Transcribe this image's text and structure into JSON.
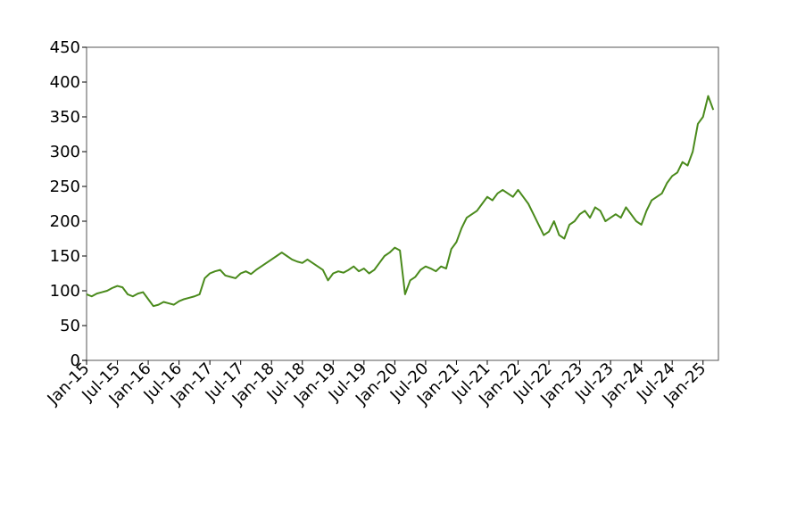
{
  "chart_data": {
    "type": "line",
    "x": [
      "2015-01",
      "2015-02",
      "2015-03",
      "2015-04",
      "2015-05",
      "2015-06",
      "2015-07",
      "2015-08",
      "2015-09",
      "2015-10",
      "2015-11",
      "2015-12",
      "2016-01",
      "2016-02",
      "2016-03",
      "2016-04",
      "2016-05",
      "2016-06",
      "2016-07",
      "2016-08",
      "2016-09",
      "2016-10",
      "2016-11",
      "2016-12",
      "2017-01",
      "2017-02",
      "2017-03",
      "2017-04",
      "2017-05",
      "2017-06",
      "2017-07",
      "2017-08",
      "2017-09",
      "2017-10",
      "2017-11",
      "2017-12",
      "2018-01",
      "2018-02",
      "2018-03",
      "2018-04",
      "2018-05",
      "2018-06",
      "2018-07",
      "2018-08",
      "2018-09",
      "2018-10",
      "2018-11",
      "2018-12",
      "2019-01",
      "2019-02",
      "2019-03",
      "2019-04",
      "2019-05",
      "2019-06",
      "2019-07",
      "2019-08",
      "2019-09",
      "2019-10",
      "2019-11",
      "2019-12",
      "2020-01",
      "2020-02",
      "2020-03",
      "2020-04",
      "2020-05",
      "2020-06",
      "2020-07",
      "2020-08",
      "2020-09",
      "2020-10",
      "2020-11",
      "2020-12",
      "2021-01",
      "2021-02",
      "2021-03",
      "2021-04",
      "2021-05",
      "2021-06",
      "2021-07",
      "2021-08",
      "2021-09",
      "2021-10",
      "2021-11",
      "2021-12",
      "2022-01",
      "2022-02",
      "2022-03",
      "2022-04",
      "2022-05",
      "2022-06",
      "2022-07",
      "2022-08",
      "2022-09",
      "2022-10",
      "2022-11",
      "2022-12",
      "2023-01",
      "2023-02",
      "2023-03",
      "2023-04",
      "2023-05",
      "2023-06",
      "2023-07",
      "2023-08",
      "2023-09",
      "2023-10",
      "2023-11",
      "2023-12",
      "2024-01",
      "2024-02",
      "2024-03",
      "2024-04",
      "2024-05",
      "2024-06",
      "2024-07",
      "2024-08",
      "2024-09",
      "2024-10",
      "2024-11",
      "2024-12",
      "2025-01",
      "2025-02",
      "2025-03"
    ],
    "series": [
      {
        "color": "#4a8a1c",
        "values": [
          95,
          92,
          96,
          98,
          100,
          104,
          107,
          105,
          95,
          92,
          96,
          98,
          88,
          78,
          80,
          84,
          82,
          80,
          85,
          88,
          90,
          92,
          95,
          118,
          125,
          128,
          130,
          122,
          120,
          118,
          125,
          128,
          124,
          130,
          135,
          140,
          145,
          150,
          155,
          150,
          145,
          142,
          140,
          145,
          140,
          135,
          130,
          115,
          125,
          128,
          126,
          130,
          135,
          128,
          132,
          125,
          130,
          140,
          150,
          155,
          162,
          158,
          95,
          115,
          120,
          130,
          135,
          132,
          128,
          135,
          132,
          160,
          170,
          190,
          205,
          210,
          215,
          225,
          235,
          230,
          240,
          245,
          240,
          235,
          245,
          235,
          225,
          210,
          195,
          180,
          185,
          200,
          180,
          175,
          195,
          200,
          210,
          215,
          205,
          220,
          215,
          200,
          205,
          210,
          205,
          220,
          210,
          200,
          195,
          215,
          230,
          235,
          240,
          255,
          265,
          270,
          285,
          280,
          300,
          340,
          350,
          380,
          360
        ]
      }
    ],
    "xlim": [
      "2015-01",
      "2025-04"
    ],
    "xticks": [
      {
        "value": "2015-01",
        "label": "Jan-15"
      },
      {
        "value": "2015-07",
        "label": "Jul-15"
      },
      {
        "value": "2016-01",
        "label": "Jan-16"
      },
      {
        "value": "2016-07",
        "label": "Jul-16"
      },
      {
        "value": "2017-01",
        "label": "Jan-17"
      },
      {
        "value": "2017-07",
        "label": "Jul-17"
      },
      {
        "value": "2018-01",
        "label": "Jan-18"
      },
      {
        "value": "2018-07",
        "label": "Jul-18"
      },
      {
        "value": "2019-01",
        "label": "Jan-19"
      },
      {
        "value": "2019-07",
        "label": "Jul-19"
      },
      {
        "value": "2020-01",
        "label": "Jan-20"
      },
      {
        "value": "2020-07",
        "label": "Jul-20"
      },
      {
        "value": "2021-01",
        "label": "Jan-21"
      },
      {
        "value": "2021-07",
        "label": "Jul-21"
      },
      {
        "value": "2022-01",
        "label": "Jan-22"
      },
      {
        "value": "2022-07",
        "label": "Jul-22"
      },
      {
        "value": "2023-01",
        "label": "Jan-23"
      },
      {
        "value": "2023-07",
        "label": "Jul-23"
      },
      {
        "value": "2024-01",
        "label": "Jan-24"
      },
      {
        "value": "2024-07",
        "label": "Jul-24"
      },
      {
        "value": "2025-01",
        "label": "Jan-25"
      }
    ],
    "ylim": [
      0,
      450
    ],
    "yticks": [
      0,
      50,
      100,
      150,
      200,
      250,
      300,
      350,
      400,
      450
    ],
    "grid": false
  }
}
